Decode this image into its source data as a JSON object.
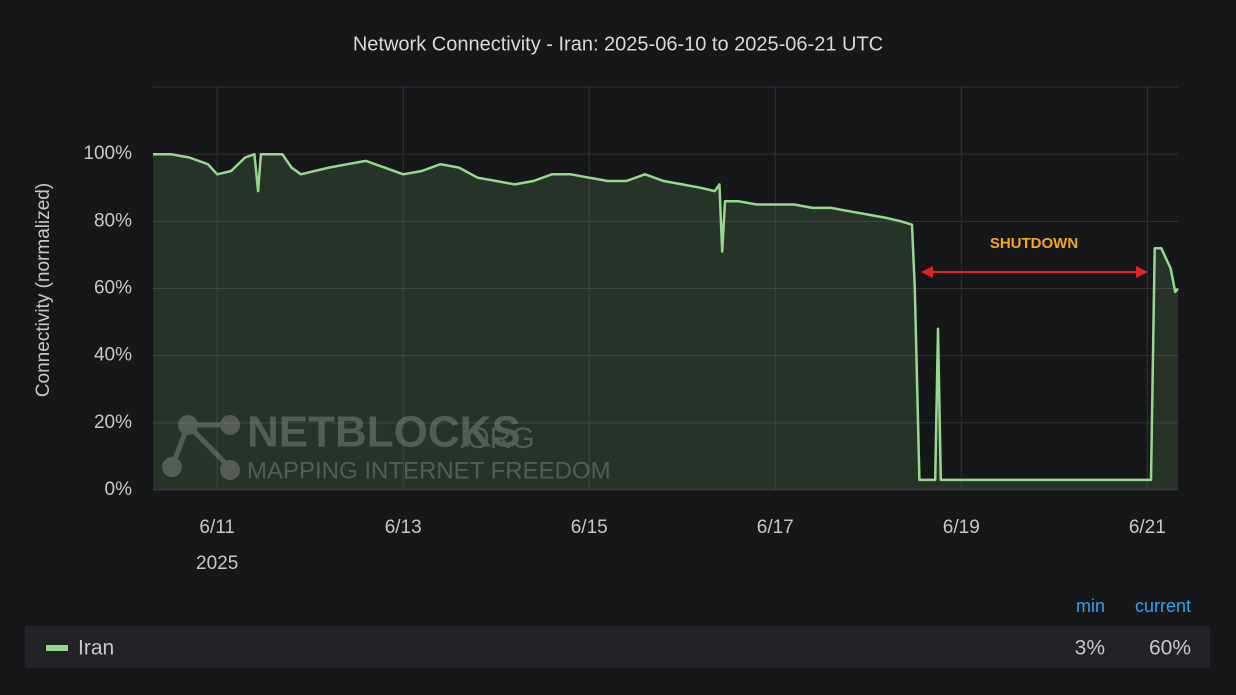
{
  "chart_data": {
    "type": "line",
    "title": "Network Connectivity - Iran: 2025-06-10 to 2025-06-21 UTC",
    "ylabel": "Connectivity (normalized)",
    "x_sublabel": "2025",
    "x": [
      10.31,
      10.5,
      10.7,
      10.9,
      11.0,
      11.15,
      11.3,
      11.4,
      11.44,
      11.47,
      11.7,
      11.8,
      11.9,
      12.2,
      12.4,
      12.6,
      12.8,
      13.0,
      13.2,
      13.4,
      13.6,
      13.8,
      14.0,
      14.2,
      14.4,
      14.6,
      14.8,
      15.0,
      15.2,
      15.4,
      15.6,
      15.8,
      16.0,
      16.2,
      16.35,
      16.4,
      16.43,
      16.46,
      16.6,
      16.8,
      17.0,
      17.2,
      17.4,
      17.6,
      17.8,
      18.0,
      18.2,
      18.35,
      18.47,
      18.5,
      18.55,
      18.72,
      18.75,
      18.78,
      19.0,
      19.5,
      20.0,
      20.5,
      21.0,
      21.04,
      21.08,
      21.15,
      21.25,
      21.3,
      21.33
    ],
    "series": [
      {
        "name": "Iran",
        "color": "#96d98d",
        "values": [
          100,
          100,
          99,
          97,
          94,
          95,
          99,
          100,
          89,
          100,
          100,
          96,
          94,
          96,
          97,
          98,
          96,
          94,
          95,
          97,
          96,
          93,
          92,
          91,
          92,
          94,
          94,
          93,
          92,
          92,
          94,
          92,
          91,
          90,
          89,
          91,
          71,
          86,
          86,
          85,
          85,
          85,
          84,
          84,
          83,
          82,
          81,
          80,
          79,
          60,
          3,
          3,
          48,
          3,
          3,
          3,
          3,
          3,
          3,
          3,
          72,
          72,
          66,
          59,
          60
        ]
      }
    ],
    "xlim": [
      10.31,
      21.33
    ],
    "xticks": [
      {
        "value": 11,
        "label": "6/11"
      },
      {
        "value": 13,
        "label": "6/13"
      },
      {
        "value": 15,
        "label": "6/15"
      },
      {
        "value": 17,
        "label": "6/17"
      },
      {
        "value": 19,
        "label": "6/19"
      },
      {
        "value": 21,
        "label": "6/21"
      }
    ],
    "ylim": [
      0,
      120
    ],
    "yticks": [
      {
        "value": 0,
        "label": "0%"
      },
      {
        "value": 20,
        "label": "20%"
      },
      {
        "value": 40,
        "label": "40%"
      },
      {
        "value": 60,
        "label": "60%"
      },
      {
        "value": 80,
        "label": "80%"
      },
      {
        "value": 100,
        "label": "100%"
      }
    ],
    "grid": true,
    "annotation": "SHUTDOWN",
    "watermark": {
      "name": "NETBLOCKS",
      "suffix": ".ORG",
      "tagline": "MAPPING INTERNET FREEDOM"
    },
    "legend": {
      "columns": [
        "min",
        "current"
      ],
      "stats": [
        "3%",
        "60%"
      ]
    }
  }
}
